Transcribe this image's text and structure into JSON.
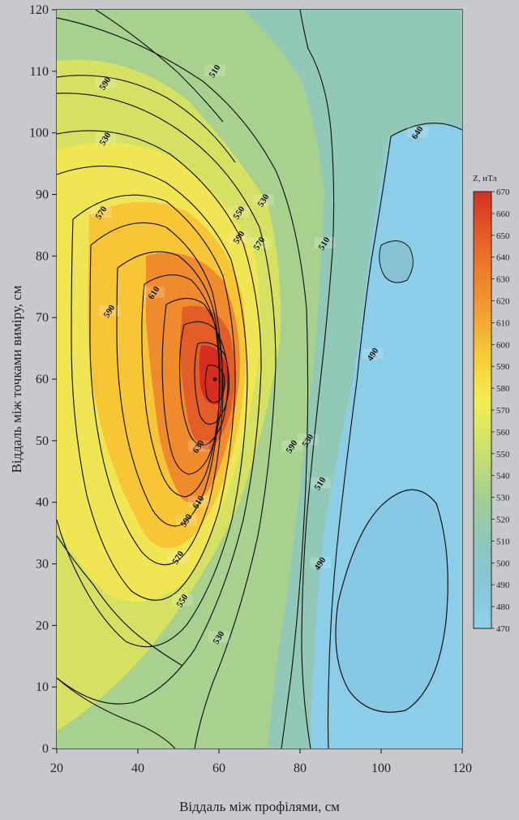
{
  "chart_data": {
    "type": "heatmap",
    "subtype": "contour",
    "title": "",
    "xlabel": "Віддаль між профілями, см",
    "ylabel": "Віддаль між точками виміру, см",
    "xlim": [
      20,
      120
    ],
    "ylim": [
      0,
      120
    ],
    "x_ticks": [
      "20",
      "40",
      "60",
      "80",
      "100",
      "120"
    ],
    "y_ticks": [
      "0",
      "10",
      "20",
      "30",
      "40",
      "50",
      "60",
      "70",
      "80",
      "90",
      "100",
      "110",
      "120"
    ],
    "colorbar": {
      "title": "Z, нТл",
      "min": 470,
      "max": 670,
      "step": 10,
      "labels": [
        "670",
        "660",
        "650",
        "640",
        "630",
        "620",
        "610",
        "600",
        "590",
        "580",
        "570",
        "560",
        "550",
        "540",
        "530",
        "520",
        "510",
        "500",
        "490",
        "480",
        "470"
      ],
      "low_color": "#88cde9",
      "high_color": "#d92b1d"
    },
    "contour_levels": [
      470,
      480,
      490,
      500,
      510,
      520,
      530,
      540,
      550,
      560,
      570,
      580,
      590,
      600,
      610,
      620,
      630,
      640,
      650,
      660,
      670
    ],
    "peak": {
      "x": 59,
      "y": 60,
      "z": 670
    },
    "contour_labels": [
      {
        "text": "590",
        "x": 32,
        "y": 108
      },
      {
        "text": "510",
        "x": 59,
        "y": 110
      },
      {
        "text": "530",
        "x": 32,
        "y": 99
      },
      {
        "text": "570",
        "x": 31,
        "y": 87
      },
      {
        "text": "590",
        "x": 33,
        "y": 71
      },
      {
        "text": "610",
        "x": 44,
        "y": 74
      },
      {
        "text": "550",
        "x": 65,
        "y": 87
      },
      {
        "text": "530",
        "x": 71,
        "y": 89
      },
      {
        "text": "570",
        "x": 70,
        "y": 82
      },
      {
        "text": "590",
        "x": 65,
        "y": 83
      },
      {
        "text": "510",
        "x": 86,
        "y": 82
      },
      {
        "text": "640",
        "x": 109,
        "y": 100
      },
      {
        "text": "490",
        "x": 98,
        "y": 64
      },
      {
        "text": "590",
        "x": 78,
        "y": 49
      },
      {
        "text": "530",
        "x": 82,
        "y": 50
      },
      {
        "text": "510",
        "x": 85,
        "y": 43
      },
      {
        "text": "630",
        "x": 55,
        "y": 49
      },
      {
        "text": "610",
        "x": 55,
        "y": 40
      },
      {
        "text": "590",
        "x": 52,
        "y": 37
      },
      {
        "text": "570",
        "x": 50,
        "y": 31
      },
      {
        "text": "550",
        "x": 51,
        "y": 24
      },
      {
        "text": "530",
        "x": 60,
        "y": 18
      },
      {
        "text": "490",
        "x": 85,
        "y": 30
      }
    ]
  }
}
